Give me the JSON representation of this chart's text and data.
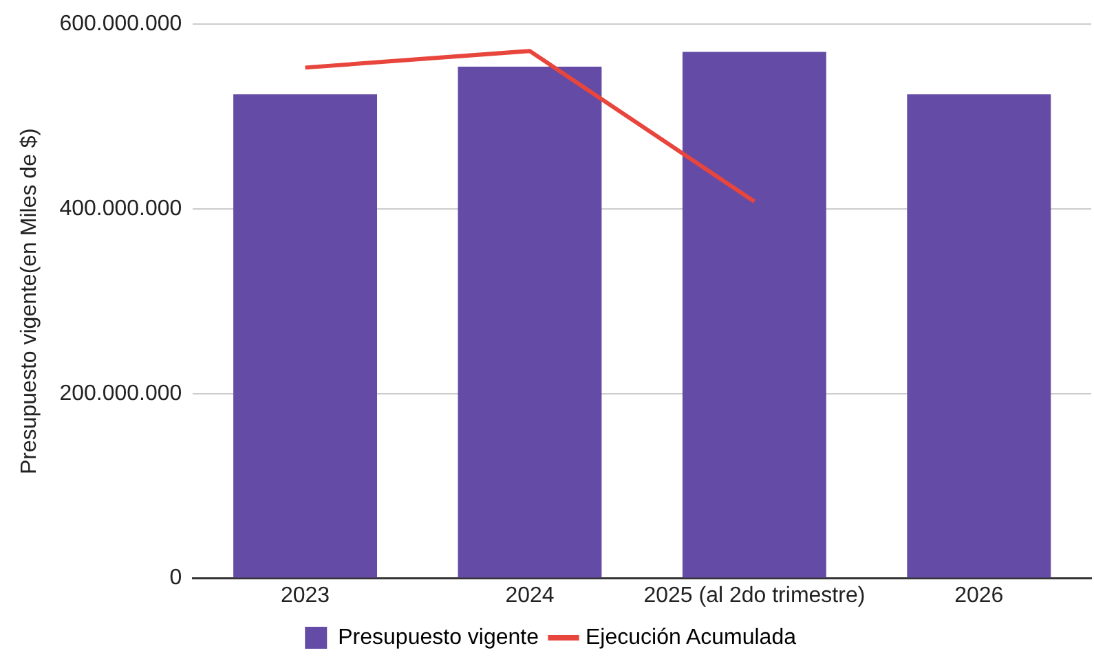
{
  "chart_data": {
    "type": "bar",
    "ylabel": "Presupuesto vigente(en Miles de $)",
    "categories": [
      "2023",
      "2024",
      "2025 (al 2do trimestre)",
      "2026"
    ],
    "series": [
      {
        "name": "Presupuesto vigente",
        "color": "#644ca6",
        "values": [
          524000000,
          554000000,
          570000000,
          524000000
        ]
      },
      {
        "name": "Ejecución Acumulada",
        "type": "line",
        "color": "#e8453c",
        "values": [
          553000000,
          571000000,
          408000000,
          null
        ]
      }
    ],
    "ylim": [
      0,
      600000000
    ],
    "yticks": [
      {
        "value": 0,
        "label": "0"
      },
      {
        "value": 200000000,
        "label": "200.000.000"
      },
      {
        "value": 400000000,
        "label": "400.000.000"
      },
      {
        "value": 600000000,
        "label": "600.000.000"
      }
    ],
    "grid": "y",
    "legend": "bottom",
    "marker": "none"
  }
}
